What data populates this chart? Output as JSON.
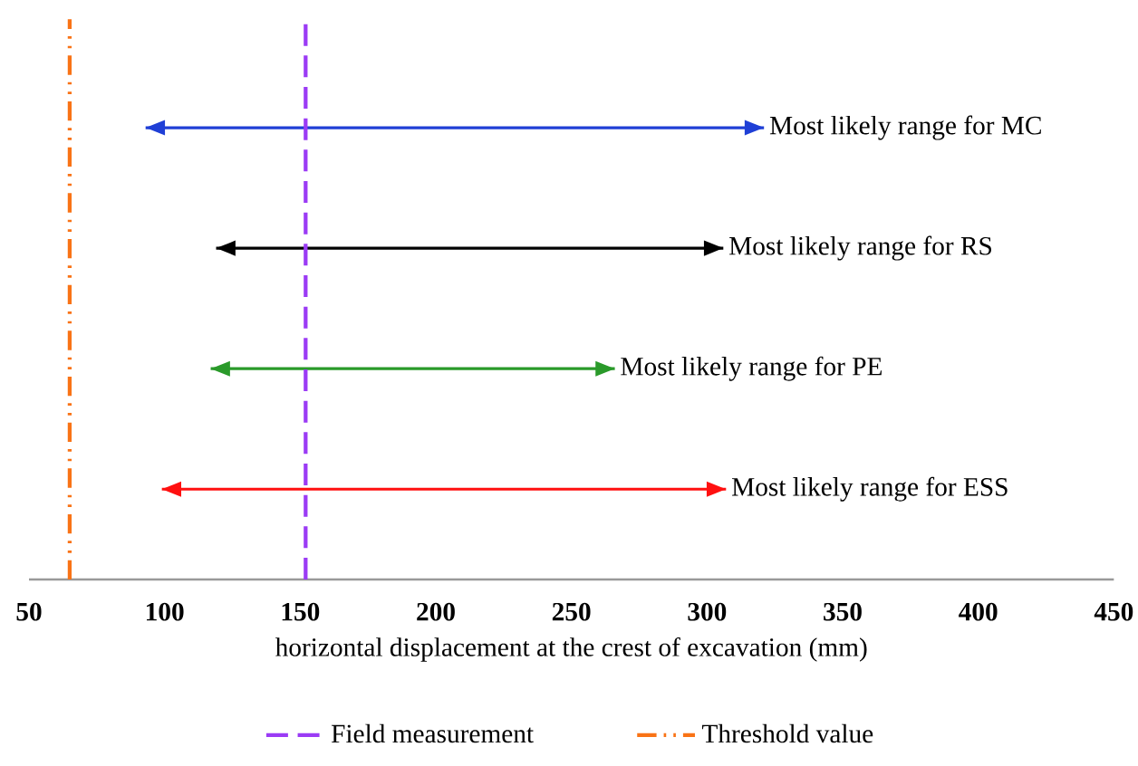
{
  "chart_data": {
    "type": "bar",
    "orientation": "horizontal",
    "xlabel": "horizontal displacement at the crest of excavation (mm)",
    "categories": [
      "Most likely range for MC",
      "Most likely range for RS",
      "Most likely range for PE",
      "Most likely range for ESS"
    ],
    "base": [
      93,
      119,
      117,
      99
    ],
    "values": [
      228,
      187,
      149,
      208
    ],
    "colors": [
      "#1f3fd6",
      "#000000",
      "#2a9a2a",
      "#ff1010"
    ],
    "xlim": [
      50,
      450
    ],
    "xticks": [
      50,
      100,
      150,
      200,
      250,
      300,
      350,
      400,
      450
    ],
    "ref_lines": [
      {
        "axis": "x",
        "value": 152,
        "label": "Field measurement",
        "color": "#9b3bf5",
        "line_style": "dashed"
      },
      {
        "axis": "x",
        "value": 65,
        "label": "Threshold value",
        "color": "#f97316",
        "line_style": "dashdot"
      }
    ],
    "legend": "bottom",
    "grid": false
  }
}
